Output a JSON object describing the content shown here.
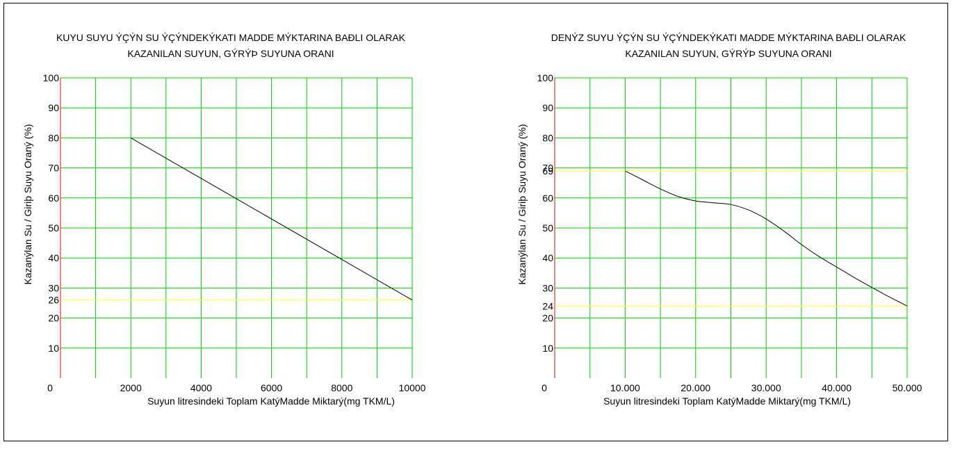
{
  "colors": {
    "grid": "#00cc00",
    "axis": "#ff0000",
    "reference": "#ffff66",
    "line": "#000000"
  },
  "chart_data": [
    {
      "type": "line",
      "title_line1": "KUYU SUYU ÝÇÝN SU ÝÇÝNDEKÝKATI MADDE MÝKTARINA BAÐLI OLARAK",
      "title_line2": "KAZANILAN SUYUN, GÝRÝÞ SUYUNA ORANI",
      "xlabel": "Suyun litresindeki Toplam KatýMadde Miktarý(mg TKM/L)",
      "ylabel": "Kazanýlan Su / Giriþ Suyu Oraný (%)",
      "xlim": [
        0,
        10000
      ],
      "ylim": [
        0,
        100
      ],
      "x_grid": [
        1000,
        2000,
        3000,
        4000,
        5000,
        6000,
        7000,
        8000,
        9000,
        10000
      ],
      "y_grid": [
        10,
        20,
        30,
        40,
        50,
        60,
        70,
        80,
        90,
        100
      ],
      "x_ticks": [
        {
          "value": 0,
          "label": "0"
        },
        {
          "value": 2000,
          "label": "2000"
        },
        {
          "value": 4000,
          "label": "4000"
        },
        {
          "value": 6000,
          "label": "6000"
        },
        {
          "value": 8000,
          "label": "8000"
        },
        {
          "value": 10000,
          "label": "10000"
        }
      ],
      "y_ticks": [
        {
          "value": 10,
          "label": "10"
        },
        {
          "value": 20,
          "label": "20"
        },
        {
          "value": 26,
          "label": "26"
        },
        {
          "value": 30,
          "label": "30"
        },
        {
          "value": 40,
          "label": "40"
        },
        {
          "value": 50,
          "label": "50"
        },
        {
          "value": 60,
          "label": "60"
        },
        {
          "value": 70,
          "label": "70"
        },
        {
          "value": 80,
          "label": "80"
        },
        {
          "value": 90,
          "label": "90"
        },
        {
          "value": 100,
          "label": "100"
        }
      ],
      "reference_y": 26,
      "series": [
        {
          "x": [
            2000,
            10000
          ],
          "y": [
            80,
            26
          ]
        }
      ],
      "grid": true
    },
    {
      "type": "line",
      "title_line1": "DENÝZ SUYU ÝÇÝN SU ÝÇÝNDEKÝKATI MADDE MÝKTARINA BAÐLI OLARAK",
      "title_line2": "KAZANILAN SUYUN, GÝRÝÞ SUYUNA ORANI",
      "xlabel": "Suyun litresindeki Toplam KatýMadde Miktarý(mg TKM/L)",
      "ylabel": "Kazanýlan Su / Giriþ Suyu Oraný (%)",
      "xlim": [
        0,
        50000
      ],
      "ylim": [
        0,
        100
      ],
      "x_grid": [
        5000,
        10000,
        15000,
        20000,
        25000,
        30000,
        35000,
        40000,
        45000,
        50000
      ],
      "y_grid": [
        10,
        20,
        30,
        40,
        50,
        60,
        70,
        80,
        90,
        100
      ],
      "x_ticks": [
        {
          "value": 0,
          "label": "0"
        },
        {
          "value": 10000,
          "label": "10.000"
        },
        {
          "value": 20000,
          "label": "20.000"
        },
        {
          "value": 30000,
          "label": "30.000"
        },
        {
          "value": 40000,
          "label": "40.000"
        },
        {
          "value": 50000,
          "label": "50.000"
        }
      ],
      "y_ticks": [
        {
          "value": 10,
          "label": "10"
        },
        {
          "value": 20,
          "label": "20"
        },
        {
          "value": 24,
          "label": "24"
        },
        {
          "value": 30,
          "label": "30"
        },
        {
          "value": 40,
          "label": "40"
        },
        {
          "value": 50,
          "label": "50"
        },
        {
          "value": 60,
          "label": "60"
        },
        {
          "value": 69,
          "label": "69"
        },
        {
          "value": 70,
          "label": "70"
        },
        {
          "value": 80,
          "label": "80"
        },
        {
          "value": 90,
          "label": "90"
        },
        {
          "value": 100,
          "label": "100"
        }
      ],
      "reference_y": [
        69,
        24
      ],
      "series": [
        {
          "x": [
            10000,
            12500,
            15000,
            17500,
            20000,
            22500,
            25000,
            27500,
            30000,
            32500,
            35000,
            37500,
            40000,
            42500,
            45000,
            47500,
            50000
          ],
          "y": [
            69,
            66,
            63,
            60.5,
            59,
            58.4,
            57.8,
            56,
            53,
            49,
            44.5,
            40.5,
            37,
            33.5,
            30.2,
            27,
            24
          ]
        }
      ],
      "grid": true
    }
  ]
}
